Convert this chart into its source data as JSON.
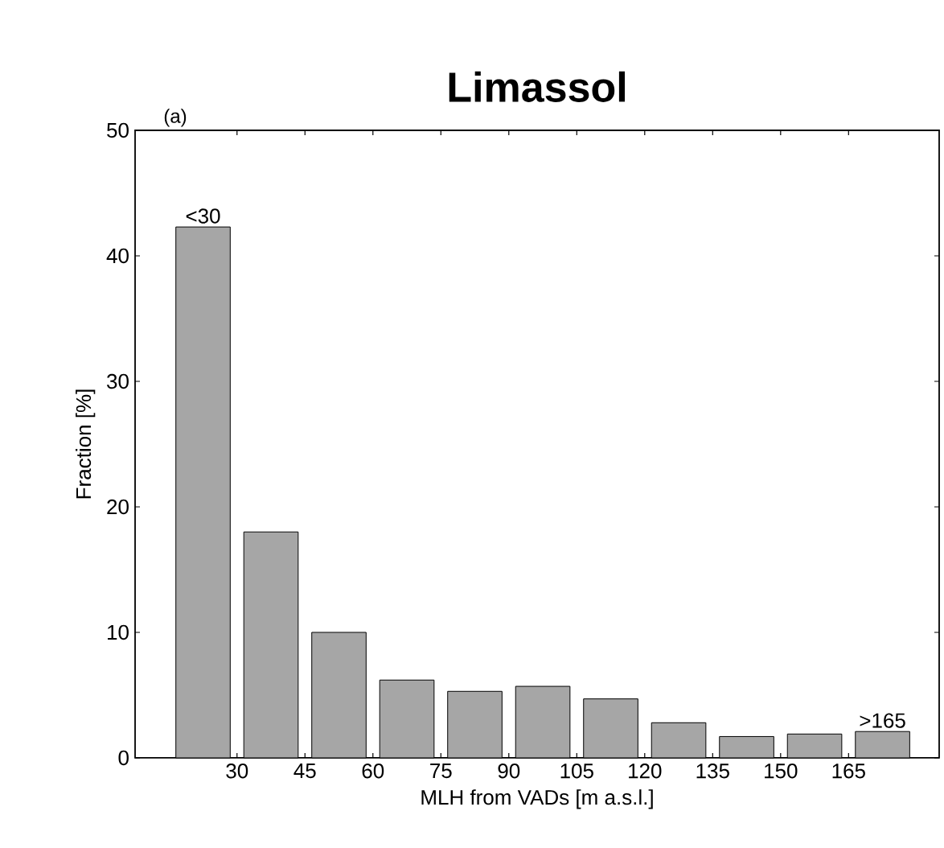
{
  "chart_data": {
    "type": "histogram",
    "title": "Limassol",
    "xlabel": "MLH from VADs [m a.s.l.]",
    "ylabel": "Fraction [%]",
    "bins": [
      15,
      30,
      45,
      60,
      75,
      90,
      105,
      120,
      135,
      150,
      165,
      180
    ],
    "values": [
      42.3,
      18.0,
      10.0,
      6.2,
      5.3,
      5.7,
      4.7,
      2.8,
      1.7,
      1.9,
      2.1
    ],
    "color": "#a6a6a6",
    "xlim": [
      7.5,
      185
    ],
    "xticks": [
      30,
      45,
      60,
      75,
      90,
      105,
      120,
      135,
      150,
      165
    ],
    "ylim": [
      0,
      50
    ],
    "yticks": [
      0,
      10,
      20,
      30,
      40,
      50
    ],
    "annotations": [
      "(a)",
      {
        "text": "<30",
        "x": 22.5,
        "y": 42.3
      },
      {
        "text": ">165",
        "x": 172.5,
        "y": 2.1
      }
    ]
  }
}
